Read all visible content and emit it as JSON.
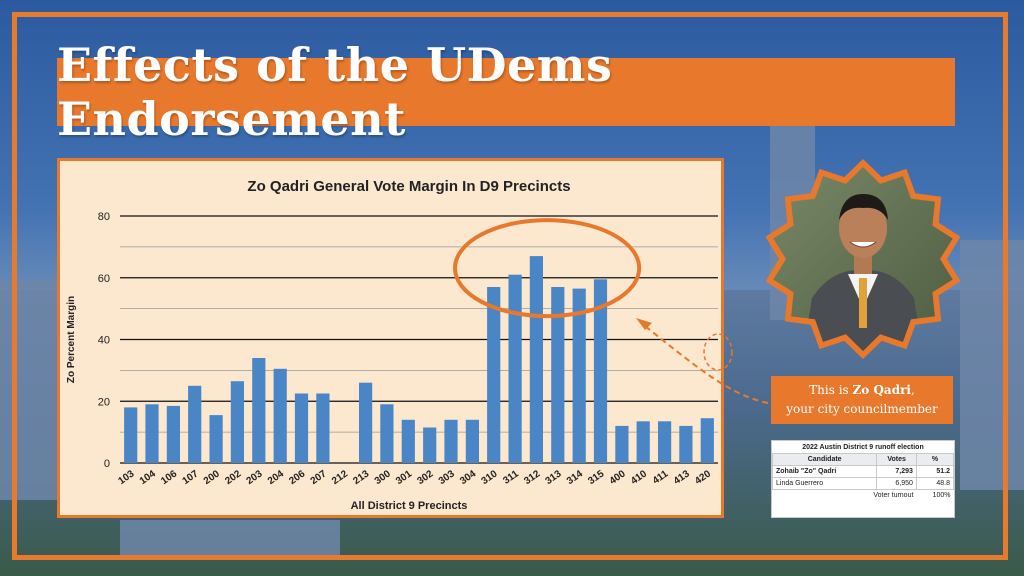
{
  "title": "Effects of the UDems Endorsement",
  "colors": {
    "accent": "#e8782c",
    "bar": "#4a86c6",
    "chart_bg": "#fbe8cf",
    "frame_bg": "#3a6aa8"
  },
  "caption": {
    "line1_prefix": "This is ",
    "line1_name": "Zo Qadri",
    "line1_suffix": ",",
    "line2": "your city councilmember"
  },
  "photo": {
    "icon": "portrait-photo"
  },
  "results_table": {
    "caption": "2022 Austin District 9 runoff election",
    "headers": [
      "Candidate",
      "Votes",
      "%"
    ],
    "rows": [
      {
        "candidate": "Zohaib \"Zo\" Qadri",
        "votes": "7,293",
        "pct": "51.2"
      },
      {
        "candidate": "Linda Guerrero",
        "votes": "6,950",
        "pct": "48.8"
      }
    ],
    "turnout_label": "Voter turnout",
    "turnout_value": "100%"
  },
  "chart_data": {
    "type": "bar",
    "title": "Zo Qadri General Vote Margin In D9 Precincts",
    "xlabel": "All District 9 Precincts",
    "ylabel": "Zo Percent Margin",
    "ylim": [
      0,
      80
    ],
    "yticks": [
      "0",
      "20",
      "40",
      "60",
      "80"
    ],
    "grid": true,
    "categories": [
      "103",
      "104",
      "106",
      "107",
      "200",
      "202",
      "203",
      "204",
      "206",
      "207",
      "212",
      "213",
      "300",
      "301",
      "302",
      "303",
      "304",
      "310",
      "311",
      "312",
      "313",
      "314",
      "315",
      "400",
      "410",
      "411",
      "413",
      "420"
    ],
    "values": [
      18,
      19,
      18.5,
      25,
      15.5,
      26.5,
      34,
      30.5,
      22.5,
      22.5,
      0,
      26,
      19,
      14,
      11.5,
      14,
      14,
      57,
      61,
      67,
      57,
      56.5,
      59.5,
      12,
      13.5,
      13.5,
      12,
      14.5
    ],
    "highlight_categories": [
      "310",
      "311",
      "312",
      "313",
      "314",
      "315"
    ]
  }
}
